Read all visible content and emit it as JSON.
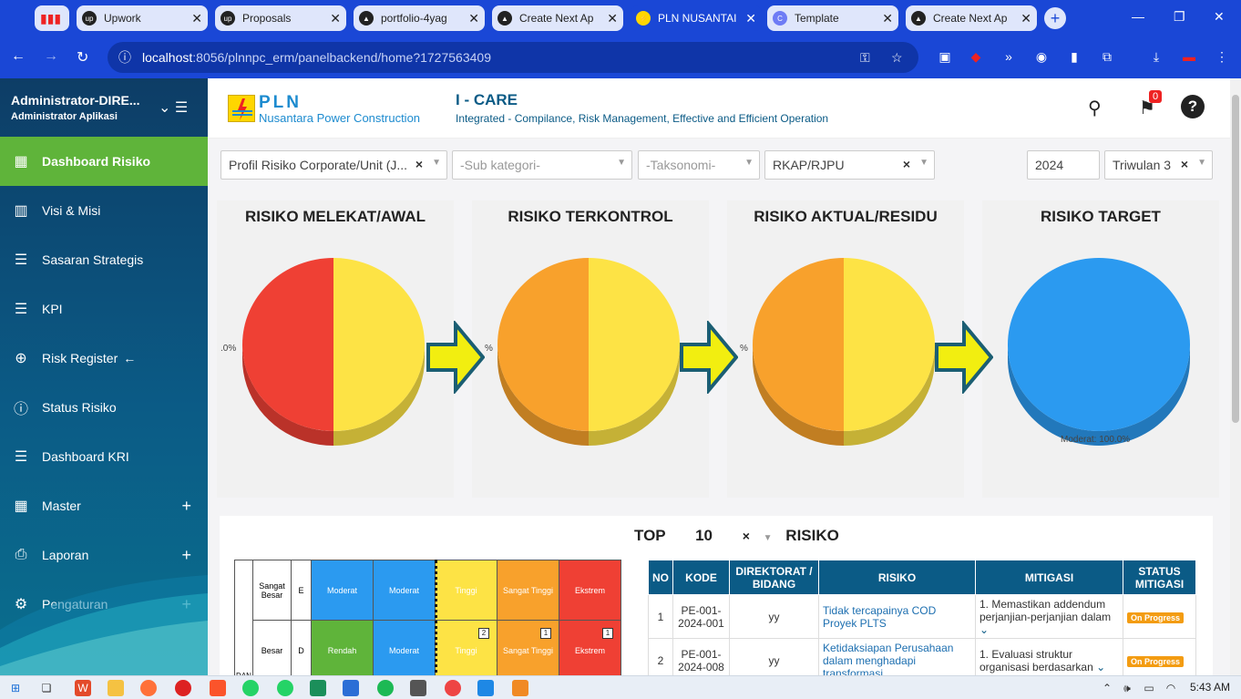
{
  "browser": {
    "tabs": [
      {
        "title": "Upwork",
        "icon": "upwork-icon",
        "active": false
      },
      {
        "title": "Proposals",
        "icon": "upwork-icon",
        "active": false
      },
      {
        "title": "portfolio-4yag",
        "icon": "vercel-icon",
        "active": false
      },
      {
        "title": "Create Next Ap",
        "icon": "vercel-icon",
        "active": false
      },
      {
        "title": "PLN NUSANTAI",
        "icon": "pln-icon",
        "active": true
      },
      {
        "title": "Template",
        "icon": "template-icon",
        "active": false
      },
      {
        "title": "Create Next Ap",
        "icon": "vercel-icon",
        "active": false
      }
    ],
    "url_host": "localhost",
    "url_path": ":8056/plnnpc_erm/panelbackend/home?1727563409"
  },
  "sidebar": {
    "user": "Administrator-DIRE...",
    "role": "Administrator Aplikasi",
    "items": [
      {
        "label": "Dashboard Risiko",
        "icon": "dashboard-icon",
        "active": true,
        "expand": ""
      },
      {
        "label": "Visi & Misi",
        "icon": "building-icon",
        "active": false,
        "expand": ""
      },
      {
        "label": "Sasaran Strategis",
        "icon": "list-icon",
        "active": false,
        "expand": ""
      },
      {
        "label": "KPI",
        "icon": "list-icon",
        "active": false,
        "expand": ""
      },
      {
        "label": "Risk Register",
        "icon": "plus-circle-icon",
        "active": false,
        "expand": ""
      },
      {
        "label": "Status Risiko",
        "icon": "info-icon",
        "active": false,
        "expand": ""
      },
      {
        "label": "Dashboard KRI",
        "icon": "list-icon",
        "active": false,
        "expand": ""
      },
      {
        "label": "Master",
        "icon": "grid-icon",
        "active": false,
        "expand": "+"
      },
      {
        "label": "Laporan",
        "icon": "printer-icon",
        "active": false,
        "expand": "+"
      },
      {
        "label": "Pengaturan",
        "icon": "gear-icon",
        "active": false,
        "expand": "+"
      }
    ]
  },
  "header": {
    "logo_title": "PLN",
    "logo_sub": "Nusantara Power Construction",
    "app_title": "I - CARE",
    "app_subtitle": "Integrated - Compilance, Risk Management, Effective and Efficient Operation",
    "notif_count": "0"
  },
  "filters": {
    "profil": "Profil Risiko Corporate/Unit (J...",
    "sub_kategori": "-Sub kategori-",
    "taksonomi": "-Taksonomi-",
    "rkap": "RKAP/RJPU",
    "year": "2024",
    "triwulan": "Triwulan 3"
  },
  "charts": {
    "titles": [
      "RISIKO MELEKAT/AWAL",
      "RISIKO TERKONTROL",
      "RISIKO AKTUAL/RESIDU",
      "RISIKO TARGET"
    ],
    "target_label": "Moderat: 100.0%",
    "partial_labels": [
      ".0%",
      "%",
      "%"
    ]
  },
  "chart_data": [
    {
      "type": "pie",
      "title": "RISIKO MELEKAT/AWAL",
      "slices": [
        {
          "value": 50,
          "color": "#fde345"
        },
        {
          "value": 50,
          "color": "#ef4034"
        }
      ]
    },
    {
      "type": "pie",
      "title": "RISIKO TERKONTROL",
      "slices": [
        {
          "value": 50,
          "color": "#fde345"
        },
        {
          "value": 50,
          "color": "#f8a12c"
        }
      ]
    },
    {
      "type": "pie",
      "title": "RISIKO AKTUAL/RESIDU",
      "slices": [
        {
          "value": 50,
          "color": "#fde345"
        },
        {
          "value": 50,
          "color": "#f8a12c"
        }
      ]
    },
    {
      "type": "pie",
      "title": "RISIKO TARGET",
      "slices": [
        {
          "label": "Moderat",
          "value": 100,
          "color": "#2b9af0"
        }
      ]
    }
  ],
  "top": {
    "prefix": "TOP",
    "count": "10",
    "suffix": "RISIKO"
  },
  "matrix": {
    "rows": [
      {
        "label": "Sangat Besar",
        "code": "E",
        "cells": [
          {
            "text": "Moderat",
            "color": "#2b9af0",
            "num": ""
          },
          {
            "text": "Moderat",
            "color": "#2b9af0",
            "num": ""
          },
          {
            "text": "Tinggi",
            "color": "#fde345",
            "num": ""
          },
          {
            "text": "Sangat Tinggi",
            "color": "#f8a12c",
            "num": ""
          },
          {
            "text": "Ekstrem",
            "color": "#ef4034",
            "num": ""
          }
        ]
      },
      {
        "label": "Besar",
        "code": "D",
        "cells": [
          {
            "text": "Rendah",
            "color": "#5fb43a",
            "num": ""
          },
          {
            "text": "Moderat",
            "color": "#2b9af0",
            "num": ""
          },
          {
            "text": "Tinggi",
            "color": "#fde345",
            "num": "2"
          },
          {
            "text": "Sangat Tinggi",
            "color": "#f8a12c",
            "num": "1"
          },
          {
            "text": "Ekstrem",
            "color": "#ef4034",
            "num": "1"
          }
        ]
      }
    ],
    "axis_label": "DAN"
  },
  "table": {
    "headers": [
      "NO",
      "KODE",
      "DIREKTORAT / BIDANG",
      "RISIKO",
      "MITIGASI",
      "STATUS MITIGASI"
    ],
    "rows": [
      {
        "no": "1",
        "kode": "PE-001-2024-001",
        "bidang": "yy",
        "risiko": "Tidak tercapainya COD Proyek PLTS",
        "mitigasi": "1. Memastikan addendum perjanjian-perjanjian dalam",
        "status": "On Progress"
      },
      {
        "no": "2",
        "kode": "PE-001-2024-008",
        "bidang": "yy",
        "risiko": "Ketidaksiapan Perusahaan dalam menghadapi transformasi",
        "mitigasi": "1. Evaluasi struktur organisasi berdasarkan",
        "status": "On Progress"
      }
    ]
  },
  "taskbar": {
    "time": "5:43 AM"
  }
}
